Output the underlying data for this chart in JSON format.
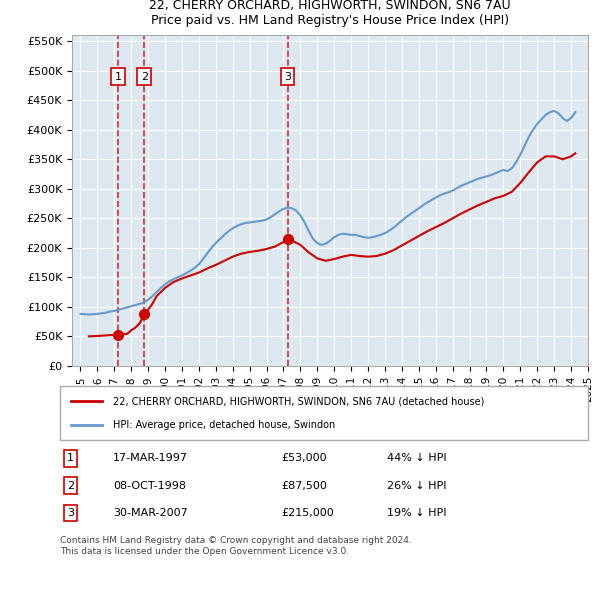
{
  "title": "22, CHERRY ORCHARD, HIGHWORTH, SWINDON, SN6 7AU",
  "subtitle": "Price paid vs. HM Land Registry's House Price Index (HPI)",
  "property_color": "#cc0000",
  "hpi_color": "#6699cc",
  "background_color": "#dde8f0",
  "ylim": [
    0,
    560000
  ],
  "yticks": [
    0,
    50000,
    100000,
    150000,
    200000,
    250000,
    300000,
    350000,
    400000,
    450000,
    500000,
    550000
  ],
  "sales": [
    {
      "num": 1,
      "date": "17-MAR-1997",
      "year": 1997.21,
      "price": 53000,
      "pct": "44% ↓ HPI"
    },
    {
      "num": 2,
      "date": "08-OCT-1998",
      "year": 1998.77,
      "price": 87500,
      "pct": "26% ↓ HPI"
    },
    {
      "num": 3,
      "date": "30-MAR-2007",
      "year": 2007.24,
      "price": 215000,
      "pct": "19% ↓ HPI"
    }
  ],
  "legend_property": "22, CHERRY ORCHARD, HIGHWORTH, SWINDON, SN6 7AU (detached house)",
  "legend_hpi": "HPI: Average price, detached house, Swindon",
  "footnote": "Contains HM Land Registry data © Crown copyright and database right 2024.\nThis data is licensed under the Open Government Licence v3.0.",
  "hpi_data": {
    "years": [
      1995.0,
      1995.25,
      1995.5,
      1995.75,
      1996.0,
      1996.25,
      1996.5,
      1996.75,
      1997.0,
      1997.25,
      1997.5,
      1997.75,
      1998.0,
      1998.25,
      1998.5,
      1998.75,
      1999.0,
      1999.25,
      1999.5,
      1999.75,
      2000.0,
      2000.25,
      2000.5,
      2000.75,
      2001.0,
      2001.25,
      2001.5,
      2001.75,
      2002.0,
      2002.25,
      2002.5,
      2002.75,
      2003.0,
      2003.25,
      2003.5,
      2003.75,
      2004.0,
      2004.25,
      2004.5,
      2004.75,
      2005.0,
      2005.25,
      2005.5,
      2005.75,
      2006.0,
      2006.25,
      2006.5,
      2006.75,
      2007.0,
      2007.25,
      2007.5,
      2007.75,
      2008.0,
      2008.25,
      2008.5,
      2008.75,
      2009.0,
      2009.25,
      2009.5,
      2009.75,
      2010.0,
      2010.25,
      2010.5,
      2010.75,
      2011.0,
      2011.25,
      2011.5,
      2011.75,
      2012.0,
      2012.25,
      2012.5,
      2012.75,
      2013.0,
      2013.25,
      2013.5,
      2013.75,
      2014.0,
      2014.25,
      2014.5,
      2014.75,
      2015.0,
      2015.25,
      2015.5,
      2015.75,
      2016.0,
      2016.25,
      2016.5,
      2016.75,
      2017.0,
      2017.25,
      2017.5,
      2017.75,
      2018.0,
      2018.25,
      2018.5,
      2018.75,
      2019.0,
      2019.25,
      2019.5,
      2019.75,
      2020.0,
      2020.25,
      2020.5,
      2020.75,
      2021.0,
      2021.25,
      2021.5,
      2021.75,
      2022.0,
      2022.25,
      2022.5,
      2022.75,
      2023.0,
      2023.25,
      2023.5,
      2023.75,
      2024.0,
      2024.25
    ],
    "values": [
      88000,
      87500,
      87000,
      87500,
      88000,
      89000,
      90000,
      92000,
      93000,
      95000,
      97000,
      99000,
      101000,
      103000,
      105000,
      107000,
      112000,
      118000,
      125000,
      132000,
      138000,
      143000,
      147000,
      150000,
      153000,
      157000,
      161000,
      166000,
      172000,
      181000,
      191000,
      200000,
      208000,
      215000,
      222000,
      228000,
      233000,
      237000,
      240000,
      242000,
      243000,
      244000,
      245000,
      246000,
      248000,
      252000,
      257000,
      262000,
      266000,
      268000,
      267000,
      263000,
      255000,
      243000,
      228000,
      215000,
      208000,
      205000,
      207000,
      212000,
      218000,
      222000,
      224000,
      223000,
      222000,
      222000,
      220000,
      218000,
      217000,
      218000,
      220000,
      222000,
      225000,
      229000,
      234000,
      240000,
      246000,
      252000,
      257000,
      262000,
      267000,
      272000,
      277000,
      281000,
      285000,
      289000,
      292000,
      294000,
      297000,
      301000,
      305000,
      308000,
      311000,
      314000,
      317000,
      319000,
      321000,
      323000,
      326000,
      329000,
      332000,
      330000,
      335000,
      345000,
      358000,
      373000,
      388000,
      400000,
      410000,
      418000,
      425000,
      430000,
      432000,
      428000,
      420000,
      415000,
      420000,
      430000
    ]
  },
  "property_data": {
    "years": [
      1995.5,
      1996.0,
      1996.25,
      1996.5,
      1996.75,
      1997.0,
      1997.21,
      1997.5,
      1997.75,
      1998.0,
      1998.25,
      1998.5,
      1998.77,
      1999.0,
      1999.25,
      1999.5,
      2000.0,
      2000.5,
      2001.0,
      2001.5,
      2002.0,
      2002.5,
      2003.0,
      2003.5,
      2004.0,
      2004.5,
      2005.0,
      2005.5,
      2006.0,
      2006.5,
      2007.0,
      2007.24,
      2007.5,
      2008.0,
      2008.5,
      2009.0,
      2009.5,
      2010.0,
      2010.5,
      2011.0,
      2011.5,
      2012.0,
      2012.5,
      2013.0,
      2013.5,
      2014.0,
      2014.5,
      2015.0,
      2015.5,
      2016.0,
      2016.5,
      2017.0,
      2017.5,
      2018.0,
      2018.5,
      2019.0,
      2019.5,
      2020.0,
      2020.5,
      2021.0,
      2021.5,
      2022.0,
      2022.5,
      2023.0,
      2023.5,
      2024.0,
      2024.25
    ],
    "values": [
      50000,
      50500,
      51000,
      51500,
      52000,
      52500,
      53000,
      53500,
      54000,
      60000,
      65000,
      72000,
      87500,
      95000,
      105000,
      118000,
      132000,
      142000,
      148000,
      153000,
      158000,
      165000,
      171000,
      178000,
      185000,
      190000,
      193000,
      195000,
      198000,
      202000,
      210000,
      215000,
      212000,
      205000,
      192000,
      182000,
      178000,
      181000,
      185000,
      188000,
      186000,
      185000,
      186000,
      190000,
      196000,
      204000,
      212000,
      220000,
      228000,
      235000,
      242000,
      250000,
      258000,
      265000,
      272000,
      278000,
      284000,
      288000,
      295000,
      310000,
      328000,
      345000,
      355000,
      355000,
      350000,
      355000,
      360000
    ]
  }
}
